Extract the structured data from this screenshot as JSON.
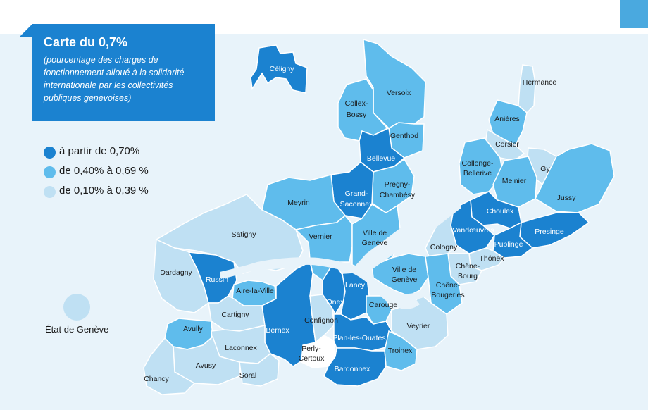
{
  "title": "Carte du 0,7%",
  "subtitle": "(pourcentage des charges de fonctionnement alloué à la solidarité internationale par les collectivités publiques genevoises)",
  "colors": {
    "dark": "#1b82d0",
    "medium": "#5fbcec",
    "light": "#bfe0f3",
    "white": "#ffffff",
    "water": "#e8f3fa"
  },
  "legend": [
    {
      "label": "à partir de 0,70%",
      "color": "#1b82d0"
    },
    {
      "label": "de 0,40% à 0,69 %",
      "color": "#5fbcec"
    },
    {
      "label": "de 0,10% à 0,39 %",
      "color": "#bfe0f3"
    }
  ],
  "state_label": "État de Genève",
  "communes": [
    {
      "name": "Céligny",
      "level": "dark"
    },
    {
      "name": "Versoix",
      "level": "medium"
    },
    {
      "name": "Collex-Bossy",
      "level": "medium"
    },
    {
      "name": "Genthod",
      "level": "medium"
    },
    {
      "name": "Bellevue",
      "level": "dark"
    },
    {
      "name": "Pregny-Chambésy",
      "level": "medium"
    },
    {
      "name": "Grand-Saconnex",
      "level": "dark"
    },
    {
      "name": "Meyrin",
      "level": "medium"
    },
    {
      "name": "Vernier",
      "level": "medium"
    },
    {
      "name": "Satigny",
      "level": "light"
    },
    {
      "name": "Ville de Genève",
      "level": "medium"
    },
    {
      "name": "Hermance",
      "level": "light"
    },
    {
      "name": "Anières",
      "level": "medium"
    },
    {
      "name": "Corsier",
      "level": "light"
    },
    {
      "name": "Collonge-Bellerive",
      "level": "medium"
    },
    {
      "name": "Gy",
      "level": "light"
    },
    {
      "name": "Meinier",
      "level": "medium"
    },
    {
      "name": "Jussy",
      "level": "medium"
    },
    {
      "name": "Choulex",
      "level": "dark"
    },
    {
      "name": "Vandœuvres",
      "level": "dark"
    },
    {
      "name": "Presinge",
      "level": "dark"
    },
    {
      "name": "Puplinge",
      "level": "dark"
    },
    {
      "name": "Cologny",
      "level": "light"
    },
    {
      "name": "Thônex",
      "level": "light"
    },
    {
      "name": "Chêne-Bourg",
      "level": "light"
    },
    {
      "name": "Chêne-Bougeries",
      "level": "medium"
    },
    {
      "name": "Dardagny",
      "level": "light"
    },
    {
      "name": "Russin",
      "level": "dark"
    },
    {
      "name": "Aire-la-Ville",
      "level": "medium"
    },
    {
      "name": "Cartigny",
      "level": "light"
    },
    {
      "name": "Bernex",
      "level": "dark"
    },
    {
      "name": "Confignon",
      "level": "light"
    },
    {
      "name": "Onex",
      "level": "dark"
    },
    {
      "name": "Lancy",
      "level": "dark"
    },
    {
      "name": "Carouge",
      "level": "medium"
    },
    {
      "name": "Veyrier",
      "level": "light"
    },
    {
      "name": "Avully",
      "level": "medium"
    },
    {
      "name": "Laconnex",
      "level": "light"
    },
    {
      "name": "Perly-Certoux",
      "level": "white"
    },
    {
      "name": "Plan-les-Ouates",
      "level": "dark"
    },
    {
      "name": "Troinex",
      "level": "medium"
    },
    {
      "name": "Avusy",
      "level": "light"
    },
    {
      "name": "Soral",
      "level": "light"
    },
    {
      "name": "Chancy",
      "level": "light"
    },
    {
      "name": "Bardonnex",
      "level": "dark"
    }
  ]
}
